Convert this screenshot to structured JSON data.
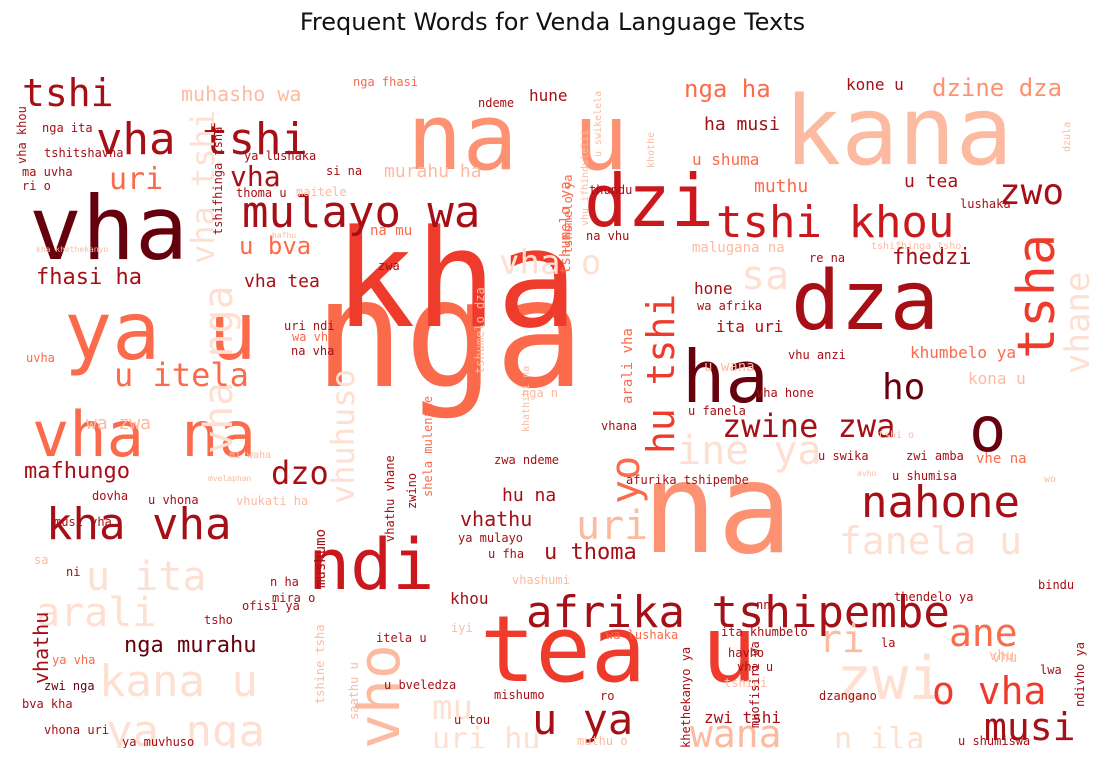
{
  "title": "Frequent Words for Venda Language Texts",
  "chart_data": {
    "type": "wordcloud",
    "title": "Frequent Words for Venda Language Texts",
    "colormap": "Reds",
    "words": [
      {
        "text": "nga",
        "weight": 100,
        "color": "#fb6a4a"
      },
      {
        "text": "kha",
        "weight": 98,
        "color": "#ef3b2c"
      },
      {
        "text": "na",
        "weight": 90,
        "color": "#fc9272"
      },
      {
        "text": "kana",
        "weight": 72,
        "color": "#fcbba1"
      },
      {
        "text": "na u",
        "weight": 70,
        "color": "#fc9272"
      },
      {
        "text": "tea u",
        "weight": 70,
        "color": "#ef3b2c"
      },
      {
        "text": "vha",
        "weight": 66,
        "color": "#67000d"
      },
      {
        "text": "ya u",
        "weight": 60,
        "color": "#fb6a4a"
      },
      {
        "text": "dza",
        "weight": 60,
        "color": "#a50f15"
      },
      {
        "text": "dzi",
        "weight": 55,
        "color": "#cb181d"
      },
      {
        "text": "ha",
        "weight": 55,
        "color": "#67000d"
      },
      {
        "text": "ndi",
        "weight": 52,
        "color": "#cb181d"
      },
      {
        "text": "vha na",
        "weight": 48,
        "color": "#fb6a4a"
      },
      {
        "text": "o",
        "weight": 46,
        "color": "#67000d"
      },
      {
        "text": "zwi",
        "weight": 44,
        "color": "#fee0d2"
      },
      {
        "text": "tsha",
        "weight": 40,
        "color": "#ef3b2c"
      },
      {
        "text": "vho",
        "weight": 40,
        "color": "#fcbba1"
      },
      {
        "text": "vha tshi",
        "weight": 34,
        "color": "#a50f15"
      },
      {
        "text": "mulayo wa",
        "weight": 34,
        "color": "#a50f15"
      },
      {
        "text": "tshi khou",
        "weight": 34,
        "color": "#cb181d"
      },
      {
        "text": "ya nga",
        "weight": 34,
        "color": "#fee0d2"
      },
      {
        "text": "kana u",
        "weight": 34,
        "color": "#fee0d2"
      },
      {
        "text": "afrika tshipembe",
        "weight": 34,
        "color": "#a50f15"
      },
      {
        "text": "nahone",
        "weight": 34,
        "color": "#a50f15"
      },
      {
        "text": "kha vha",
        "weight": 34,
        "color": "#a50f15"
      },
      {
        "text": "u ya",
        "weight": 32,
        "color": "#a50f15"
      },
      {
        "text": "tshi",
        "weight": 30,
        "color": "#a50f15"
      },
      {
        "text": "hu tshi",
        "weight": 30,
        "color": "#ef3b2c"
      },
      {
        "text": "arali",
        "weight": 30,
        "color": "#fee0d2"
      },
      {
        "text": "u ita",
        "weight": 30,
        "color": "#fee0d2"
      },
      {
        "text": "ine ya",
        "weight": 30,
        "color": "#fee0d2"
      },
      {
        "text": "vha nga",
        "weight": 30,
        "color": "#fee0d2"
      },
      {
        "text": "o vha",
        "weight": 30,
        "color": "#ef3b2c"
      },
      {
        "text": "musi",
        "weight": 30,
        "color": "#a50f15"
      },
      {
        "text": "wana",
        "weight": 30,
        "color": "#fcbba1"
      },
      {
        "text": "fanela u",
        "weight": 30,
        "color": "#fee0d2"
      },
      {
        "text": "yo",
        "weight": 30,
        "color": "#fb6a4a"
      },
      {
        "text": "zwo",
        "weight": 30,
        "color": "#a50f15"
      },
      {
        "text": "ho",
        "weight": 30,
        "color": "#67000d"
      },
      {
        "text": "ane",
        "weight": 30,
        "color": "#fb6a4a"
      },
      {
        "text": "ri",
        "weight": 30,
        "color": "#fcbba1"
      },
      {
        "text": "uri",
        "weight": 30,
        "color": "#fcbba1"
      },
      {
        "text": "zwine zwa",
        "weight": 28,
        "color": "#a50f15"
      },
      {
        "text": "u itela",
        "weight": 28,
        "color": "#fb6a4a"
      },
      {
        "text": "dzo",
        "weight": 28,
        "color": "#a50f15"
      },
      {
        "text": "sa",
        "weight": 28,
        "color": "#fee0d2"
      },
      {
        "text": "vha o",
        "weight": 26,
        "color": "#fee0d2"
      },
      {
        "text": "vhane",
        "weight": 26,
        "color": "#fee0d2"
      },
      {
        "text": "vha tshi",
        "weight": 26,
        "color": "#fee0d2"
      },
      {
        "text": "vhuhuso",
        "weight": 26,
        "color": "#fee0d2"
      },
      {
        "text": "mu",
        "weight": 26,
        "color": "#fee0d2"
      },
      {
        "text": "uri hu",
        "weight": 26,
        "color": "#fee0d2"
      },
      {
        "text": "n ila",
        "weight": 26,
        "color": "#fee0d2"
      },
      {
        "text": "uri",
        "weight": 24,
        "color": "#fb6a4a"
      },
      {
        "text": "vha",
        "weight": 24,
        "color": "#a50f15"
      },
      {
        "text": "dzine dza",
        "weight": 22,
        "color": "#fc9272"
      },
      {
        "text": "fhasi ha",
        "weight": 20,
        "color": "#a50f15"
      },
      {
        "text": "mafhungo",
        "weight": 20,
        "color": "#a50f15"
      },
      {
        "text": "u bva",
        "weight": 20,
        "color": "#fb6a4a"
      },
      {
        "text": "nga ha",
        "weight": 20,
        "color": "#fb6a4a"
      },
      {
        "text": "fhedzi",
        "weight": 20,
        "color": "#a50f15"
      },
      {
        "text": "u thoma",
        "weight": 20,
        "color": "#a50f15"
      },
      {
        "text": "nga murahu",
        "weight": 20,
        "color": "#67000d"
      },
      {
        "text": "hu na",
        "weight": 18,
        "color": "#a50f15"
      },
      {
        "text": "vhathu",
        "weight": 18,
        "color": "#a50f15"
      },
      {
        "text": "wa zwa",
        "weight": 18,
        "color": "#fcbba1"
      },
      {
        "text": "vhathu",
        "weight": 18,
        "color": "#a50f15"
      },
      {
        "text": "vha tea",
        "weight": 16,
        "color": "#a50f15"
      },
      {
        "text": "muthu",
        "weight": 16,
        "color": "#fb6a4a"
      },
      {
        "text": "u tea",
        "weight": 16,
        "color": "#a50f15"
      },
      {
        "text": "murahu ha",
        "weight": 16,
        "color": "#fcbba1"
      },
      {
        "text": "muhasho wa",
        "weight": 16,
        "color": "#fcbba1"
      },
      {
        "text": "ha musi",
        "weight": 16,
        "color": "#a50f15"
      },
      {
        "text": "u shuma",
        "weight": 16,
        "color": "#fb6a4a"
      },
      {
        "text": "kone u",
        "weight": 16,
        "color": "#a50f15"
      },
      {
        "text": "hune",
        "weight": 16,
        "color": "#a50f15"
      },
      {
        "text": "khumbelo ya",
        "weight": 16,
        "color": "#fb6a4a"
      },
      {
        "text": "kona u",
        "weight": 16,
        "color": "#fcbba1"
      },
      {
        "text": "ita uri",
        "weight": 16,
        "color": "#a50f15"
      },
      {
        "text": "hone",
        "weight": 16,
        "color": "#a50f15"
      },
      {
        "text": "khou",
        "weight": 16,
        "color": "#a50f15"
      },
      {
        "text": "mushumo",
        "weight": 14,
        "color": "#a50f15"
      },
      {
        "text": "vhu",
        "weight": 14,
        "color": "#fcbba1"
      },
      {
        "text": "tshumelo ya",
        "weight": 14,
        "color": "#fb6a4a"
      },
      {
        "text": "na mu",
        "weight": 14,
        "color": "#fb6a4a"
      },
      {
        "text": "malugana na",
        "weight": 14,
        "color": "#fcbba1"
      },
      {
        "text": "tshumelo dza",
        "weight": 12,
        "color": "#fcbba1"
      },
      {
        "text": "arali vha",
        "weight": 12,
        "color": "#fb6a4a"
      },
      {
        "text": "u wana",
        "weight": 12,
        "color": "#fcbba1"
      },
      {
        "text": "vhe na",
        "weight": 12,
        "color": "#fb6a4a"
      },
      {
        "text": "ofisi ya",
        "weight": 12,
        "color": "#a50f15"
      },
      {
        "text": "nga n",
        "weight": 12,
        "color": "#fcbba1"
      },
      {
        "text": "ya vha",
        "weight": 12,
        "color": "#fb6a4a"
      },
      {
        "text": "zwi nga",
        "weight": 12,
        "color": "#67000d"
      },
      {
        "text": "bva kha",
        "weight": 12,
        "color": "#a50f15"
      },
      {
        "text": "vhona uri",
        "weight": 12,
        "color": "#a50f15"
      },
      {
        "text": "ya muvhuso",
        "weight": 12,
        "color": "#a50f15"
      },
      {
        "text": "musi vha",
        "weight": 12,
        "color": "#a50f15"
      },
      {
        "text": "dovha",
        "weight": 12,
        "color": "#a50f15"
      },
      {
        "text": "u vhona",
        "weight": 12,
        "color": "#a50f15"
      },
      {
        "text": "vhukati ha",
        "weight": 12,
        "color": "#fcbba1"
      },
      {
        "text": "mi waha",
        "weight": 10,
        "color": "#fcbba1"
      },
      {
        "text": "ya mulayo",
        "weight": 12,
        "color": "#a50f15"
      },
      {
        "text": "u fha",
        "weight": 12,
        "color": "#a50f15"
      },
      {
        "text": "vhashumi",
        "weight": 12,
        "color": "#fcbba1"
      },
      {
        "text": "zwa ndeme",
        "weight": 12,
        "color": "#a50f15"
      },
      {
        "text": "afurika tshipembe",
        "weight": 12,
        "color": "#a50f15"
      },
      {
        "text": "u swika",
        "weight": 12,
        "color": "#a50f15"
      },
      {
        "text": "u shumisa",
        "weight": 12,
        "color": "#a50f15"
      },
      {
        "text": "zwi amba",
        "weight": 12,
        "color": "#a50f15"
      },
      {
        "text": "vha hone",
        "weight": 12,
        "color": "#a50f15"
      },
      {
        "text": "vhana",
        "weight": 12,
        "color": "#a50f15"
      },
      {
        "text": "u fanela",
        "weight": 12,
        "color": "#a50f15"
      },
      {
        "text": "vhu anzi",
        "weight": 12,
        "color": "#a50f15"
      },
      {
        "text": "wa afrika",
        "weight": 12,
        "color": "#a50f15"
      },
      {
        "text": "re na",
        "weight": 12,
        "color": "#a50f15"
      },
      {
        "text": "lushaka",
        "weight": 12,
        "color": "#a50f15"
      },
      {
        "text": "thundu",
        "weight": 12,
        "color": "#a50f15"
      },
      {
        "text": "na vhu",
        "weight": 12,
        "color": "#a50f15"
      },
      {
        "text": "zwa",
        "weight": 12,
        "color": "#a50f15"
      },
      {
        "text": "uri ndi",
        "weight": 12,
        "color": "#a50f15"
      },
      {
        "text": "wa vhu",
        "weight": 12,
        "color": "#fb6a4a"
      },
      {
        "text": "na vha",
        "weight": 12,
        "color": "#a50f15"
      },
      {
        "text": "ndeme",
        "weight": 12,
        "color": "#a50f15"
      },
      {
        "text": "nga fhasi",
        "weight": 12,
        "color": "#fb6a4a"
      },
      {
        "text": "nga ita",
        "weight": 12,
        "color": "#a50f15"
      },
      {
        "text": "tshitshavha",
        "weight": 12,
        "color": "#a50f15"
      },
      {
        "text": "ya lushaka",
        "weight": 12,
        "color": "#a50f15"
      },
      {
        "text": "si na",
        "weight": 12,
        "color": "#a50f15"
      },
      {
        "text": "thoma u",
        "weight": 12,
        "color": "#a50f15"
      },
      {
        "text": "maitele",
        "weight": 12,
        "color": "#fcbba1"
      },
      {
        "text": "tshifhinga tsha",
        "weight": 12,
        "color": "#a50f15"
      },
      {
        "text": "ma uvha",
        "weight": 12,
        "color": "#a50f15"
      },
      {
        "text": "ri o",
        "weight": 12,
        "color": "#a50f15"
      },
      {
        "text": "uvha",
        "weight": 12,
        "color": "#fb6a4a"
      },
      {
        "text": "vha khou",
        "weight": 12,
        "color": "#a50f15"
      },
      {
        "text": "ni",
        "weight": 12,
        "color": "#a50f15"
      },
      {
        "text": "sa",
        "weight": 12,
        "color": "#fcbba1"
      },
      {
        "text": "tsho",
        "weight": 12,
        "color": "#a50f15"
      },
      {
        "text": "n ha",
        "weight": 12,
        "color": "#a50f15"
      },
      {
        "text": "mira o",
        "weight": 12,
        "color": "#a50f15"
      },
      {
        "text": "itela u",
        "weight": 12,
        "color": "#a50f15"
      },
      {
        "text": "iyi",
        "weight": 12,
        "color": "#fcbba1"
      },
      {
        "text": "u bveledza",
        "weight": 12,
        "color": "#a50f15"
      },
      {
        "text": "mishumo",
        "weight": 12,
        "color": "#a50f15"
      },
      {
        "text": "ro",
        "weight": 12,
        "color": "#a50f15"
      },
      {
        "text": "u tou",
        "weight": 12,
        "color": "#a50f15"
      },
      {
        "text": "muthu o",
        "weight": 12,
        "color": "#fcbba1"
      },
      {
        "text": "havho",
        "weight": 12,
        "color": "#a50f15"
      },
      {
        "text": "vha u",
        "weight": 12,
        "color": "#a50f15"
      },
      {
        "text": "tshipi",
        "weight": 12,
        "color": "#fcbba1"
      },
      {
        "text": "ita khumbelo",
        "weight": 12,
        "color": "#a50f15"
      },
      {
        "text": "wa lushaka",
        "weight": 12,
        "color": "#fb6a4a"
      },
      {
        "text": "nn",
        "weight": 12,
        "color": "#a50f15"
      },
      {
        "text": "thendelo ya",
        "weight": 12,
        "color": "#a50f15"
      },
      {
        "text": "bindu",
        "weight": 12,
        "color": "#a50f15"
      },
      {
        "text": "la",
        "weight": 12,
        "color": "#a50f15"
      },
      {
        "text": "dzangano",
        "weight": 12,
        "color": "#a50f15"
      },
      {
        "text": "vhu",
        "weight": 14,
        "color": "#fcbba1"
      },
      {
        "text": "lwa",
        "weight": 12,
        "color": "#a50f15"
      },
      {
        "text": "u shumiswa",
        "weight": 12,
        "color": "#a50f15"
      },
      {
        "text": "zwi tshi",
        "weight": 16,
        "color": "#a50f15"
      },
      {
        "text": "shela mulenzhe",
        "weight": 12,
        "color": "#fb6a4a"
      },
      {
        "text": "vhathu vhane",
        "weight": 12,
        "color": "#a50f15"
      },
      {
        "text": "zwino",
        "weight": 12,
        "color": "#a50f15"
      },
      {
        "text": "tshine tsha",
        "weight": 12,
        "color": "#fcbba1"
      },
      {
        "text": "saathu u",
        "weight": 12,
        "color": "#fcbba1"
      },
      {
        "text": "khethekanyo ya",
        "weight": 12,
        "color": "#a50f15"
      },
      {
        "text": "muofisiri wa",
        "weight": 12,
        "color": "#a50f15"
      },
      {
        "text": "ndivho ya",
        "weight": 12,
        "color": "#a50f15"
      },
      {
        "text": "tshumelo ya",
        "weight": 12,
        "color": "#fb6a4a"
      },
      {
        "text": "tshifhinga tsho",
        "weight": 10,
        "color": "#fcbba1"
      },
      {
        "text": "dzula",
        "weight": 10,
        "color": "#fcbba1"
      },
      {
        "text": "u swikelela",
        "weight": 10,
        "color": "#fcbba1"
      },
      {
        "text": "vhu ifhindulelii",
        "weight": 10,
        "color": "#fcbba1"
      },
      {
        "text": "khathihi na",
        "weight": 10,
        "color": "#fcbba1"
      },
      {
        "text": "khothe",
        "weight": 10,
        "color": "#fcbba1"
      },
      {
        "text": "mvelaphan",
        "weight": 8,
        "color": "#fcbba1"
      },
      {
        "text": "kha khethekanyo",
        "weight": 8,
        "color": "#fcbba1"
      },
      {
        "text": "hafhu",
        "weight": 8,
        "color": "#fcbba1"
      },
      {
        "text": "avho",
        "weight": 8,
        "color": "#fcbba1"
      },
      {
        "text": "wo",
        "weight": 10,
        "color": "#fcbba1"
      },
      {
        "text": "tshi o",
        "weight": 10,
        "color": "#fcbba1"
      }
    ]
  }
}
